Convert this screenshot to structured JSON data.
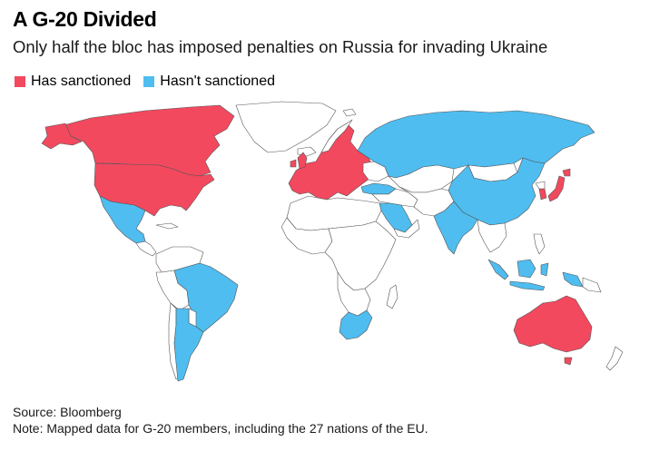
{
  "header": {
    "title": "A G-20 Divided",
    "subtitle": "Only half the bloc has imposed penalties on Russia for invading Ukraine"
  },
  "legend": {
    "items": [
      {
        "label": "Has sanctioned",
        "color": "#f2495e"
      },
      {
        "label": "Hasn't sanctioned",
        "color": "#4fbdf0"
      }
    ]
  },
  "colors": {
    "sanctioned": "#f2495e",
    "not_sanctioned": "#4fbdf0",
    "other": "#ffffff",
    "border": "#555555"
  },
  "map_data": {
    "sanctioned": [
      "United States",
      "Canada",
      "European Union",
      "United Kingdom",
      "Japan",
      "South Korea",
      "Australia"
    ],
    "not_sanctioned": [
      "Russia",
      "China",
      "India",
      "Brazil",
      "Mexico",
      "Argentina",
      "Saudi Arabia",
      "Turkey",
      "Indonesia",
      "South Africa"
    ]
  },
  "footer": {
    "source": "Source: Bloomberg",
    "note": "Note: Mapped data for G-20 members, including the 27 nations of the EU."
  }
}
